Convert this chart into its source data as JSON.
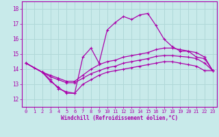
{
  "bg_color": "#c8eaea",
  "grid_color": "#b0d8d8",
  "line_color": "#aa00aa",
  "xlabel": "Windchill (Refroidissement éolien,°C)",
  "xlabel_color": "#aa00aa",
  "tick_color": "#aa00aa",
  "xlim": [
    -0.5,
    23.5
  ],
  "ylim": [
    11.5,
    18.5
  ],
  "yticks": [
    12,
    13,
    14,
    15,
    16,
    17,
    18
  ],
  "xticks": [
    0,
    1,
    2,
    3,
    4,
    5,
    6,
    7,
    8,
    9,
    10,
    11,
    12,
    13,
    14,
    15,
    16,
    17,
    18,
    19,
    20,
    21,
    22,
    23
  ],
  "line1_x": [
    0,
    1,
    2,
    3,
    4,
    5,
    6,
    7,
    8,
    9,
    10,
    11,
    12,
    13,
    14,
    15,
    16,
    17,
    18,
    19,
    20,
    21,
    22,
    23
  ],
  "line1_y": [
    14.4,
    14.1,
    13.8,
    13.2,
    12.8,
    12.4,
    12.4,
    14.8,
    15.4,
    14.4,
    16.6,
    17.1,
    17.5,
    17.3,
    17.6,
    17.7,
    16.9,
    16.0,
    15.5,
    15.2,
    15.2,
    14.8,
    14.7,
    13.9
  ],
  "line2_x": [
    0,
    2,
    3,
    4,
    5,
    6,
    7,
    8,
    9,
    10,
    11,
    12,
    13,
    14,
    15,
    16,
    17,
    18,
    19,
    20,
    21,
    22,
    23
  ],
  "line2_y": [
    14.4,
    13.8,
    13.5,
    13.3,
    13.1,
    13.1,
    13.4,
    13.7,
    13.9,
    14.1,
    14.2,
    14.4,
    14.5,
    14.6,
    14.7,
    14.85,
    14.9,
    14.9,
    14.85,
    14.8,
    14.7,
    14.4,
    13.9
  ],
  "line3_x": [
    0,
    2,
    3,
    4,
    5,
    6,
    7,
    8,
    9,
    10,
    11,
    12,
    13,
    14,
    15,
    16,
    17,
    18,
    19,
    20,
    21,
    22,
    23
  ],
  "line3_y": [
    14.4,
    13.8,
    13.6,
    13.4,
    13.2,
    13.2,
    13.6,
    14.0,
    14.3,
    14.5,
    14.6,
    14.8,
    14.9,
    15.0,
    15.1,
    15.3,
    15.4,
    15.4,
    15.3,
    15.2,
    15.1,
    14.8,
    13.9
  ],
  "line4_x": [
    0,
    2,
    3,
    4,
    5,
    6,
    7,
    8,
    9,
    10,
    11,
    12,
    13,
    14,
    15,
    16,
    17,
    18,
    19,
    20,
    21,
    22,
    23
  ],
  "line4_y": [
    14.4,
    13.8,
    13.3,
    12.7,
    12.5,
    12.4,
    13.0,
    13.3,
    13.6,
    13.8,
    13.9,
    14.0,
    14.1,
    14.2,
    14.3,
    14.4,
    14.5,
    14.5,
    14.4,
    14.3,
    14.2,
    13.9,
    13.9
  ]
}
